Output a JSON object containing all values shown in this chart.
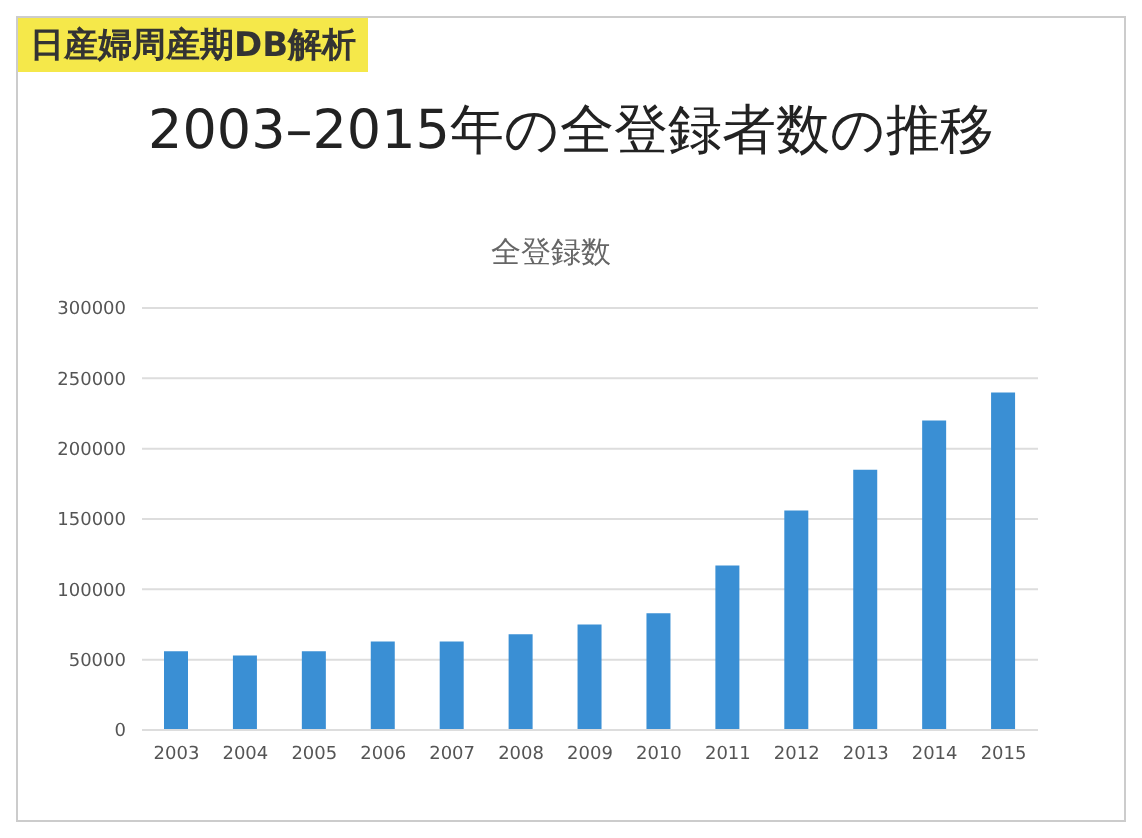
{
  "chart_data": {
    "type": "bar",
    "title": "2003–2015年の全登録者数の推移",
    "subtitle": "全登録数",
    "annotations": [
      "日産婦周産期DB解析"
    ],
    "categories": [
      "2003",
      "2004",
      "2005",
      "2006",
      "2007",
      "2008",
      "2009",
      "2010",
      "2011",
      "2012",
      "2013",
      "2014",
      "2015"
    ],
    "values": [
      56000,
      53000,
      56000,
      63000,
      63000,
      68000,
      75000,
      83000,
      117000,
      156000,
      185000,
      220000,
      240000
    ],
    "color": "#3a8fd4",
    "ylim": [
      0,
      300000
    ],
    "yticks": [
      0,
      50000,
      100000,
      150000,
      200000,
      250000,
      300000
    ],
    "grid": "y"
  }
}
